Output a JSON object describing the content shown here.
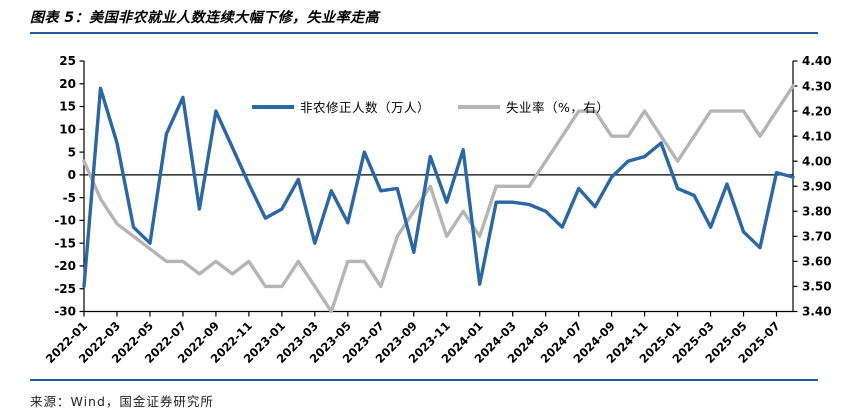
{
  "header": {
    "title": "图表 5：美国非农就业人数连续大幅下修，失业率走高"
  },
  "footer": {
    "source": "来源：Wind，国金证券研究所"
  },
  "chart_data": {
    "type": "line",
    "title": "美国非农就业人数连续大幅下修，失业率走高",
    "categories": [
      "2022-01",
      "2022-02",
      "2022-03",
      "2022-04",
      "2022-05",
      "2022-06",
      "2022-07",
      "2022-08",
      "2022-09",
      "2022-10",
      "2022-11",
      "2022-12",
      "2023-01",
      "2023-02",
      "2023-03",
      "2023-04",
      "2023-05",
      "2023-06",
      "2023-07",
      "2023-08",
      "2023-09",
      "2023-10",
      "2023-11",
      "2023-12",
      "2024-01",
      "2024-02",
      "2024-03",
      "2024-04",
      "2024-05",
      "2024-06",
      "2024-07",
      "2024-08",
      "2024-09",
      "2024-10",
      "2024-11",
      "2024-12",
      "2025-01",
      "2025-02",
      "2025-03",
      "2025-04",
      "2025-05",
      "2025-06",
      "2025-07",
      "2025-08"
    ],
    "x_tick_labels": [
      "2022-01",
      "2022-03",
      "2022-05",
      "2022-07",
      "2022-09",
      "2022-11",
      "2023-01",
      "2023-03",
      "2023-05",
      "2023-07",
      "2023-09",
      "2023-11",
      "2024-01",
      "2024-03",
      "2024-05",
      "2024-07",
      "2024-09",
      "2024-11",
      "2025-01",
      "2025-03",
      "2025-05",
      "2025-07"
    ],
    "series": [
      {
        "name": "非农修正人数（万人）",
        "axis": "left",
        "color": "#2B66A5",
        "values": [
          -24.5,
          19,
          7,
          -11.5,
          -15,
          9,
          17,
          -7.5,
          14,
          6,
          -2,
          -9.5,
          -7.5,
          -1,
          -15,
          -3.5,
          -10.5,
          5,
          -3.5,
          -3,
          -17,
          4,
          -6,
          5.5,
          -24,
          -6,
          -6,
          -6.5,
          -8,
          -11.5,
          -3,
          -7,
          -0.5,
          3,
          4,
          7,
          -3,
          -4.5,
          -11.5,
          -2,
          -12.5,
          -16,
          0.5,
          -0.5
        ]
      },
      {
        "name": "失业率（%，右）",
        "axis": "right",
        "color": "#B5B5B5",
        "values": [
          4.0,
          3.85,
          3.75,
          3.7,
          3.65,
          3.6,
          3.6,
          3.55,
          3.6,
          3.55,
          3.6,
          3.5,
          3.5,
          3.6,
          3.5,
          3.4,
          3.6,
          3.6,
          3.5,
          3.7,
          3.8,
          3.9,
          3.7,
          3.8,
          3.7,
          3.9,
          3.9,
          3.9,
          4.0,
          4.1,
          4.2,
          4.2,
          4.1,
          4.1,
          4.2,
          4.1,
          4.0,
          4.1,
          4.2,
          4.2,
          4.2,
          4.1,
          4.2,
          4.3
        ]
      }
    ],
    "left_axis": {
      "min": -30,
      "max": 25,
      "step": 5
    },
    "right_axis": {
      "min": 3.4,
      "max": 4.4,
      "step": 0.1
    },
    "legend_position": "top",
    "grid": "zero-line-only"
  }
}
